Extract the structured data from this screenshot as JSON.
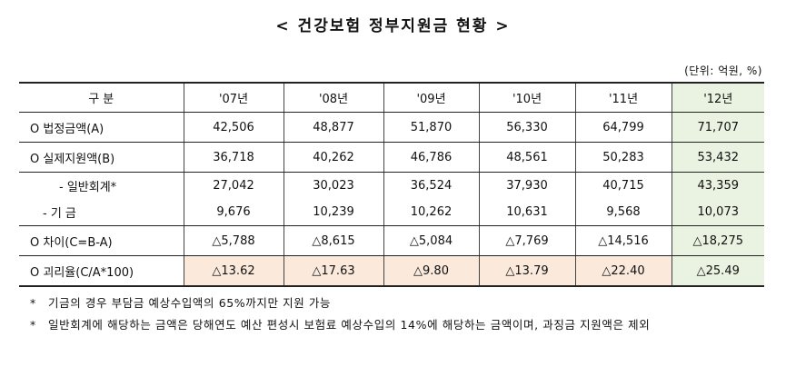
{
  "title": "< 건강보험 정부지원금 현황 >",
  "unit": "(단위: 억원, %)",
  "table": {
    "header": [
      "구 분",
      "'07년",
      "'08년",
      "'09년",
      "'10년",
      "'11년",
      "'12년"
    ],
    "rows": [
      {
        "label": "O 법정금액(A)",
        "values": [
          "42,506",
          "48,877",
          "51,870",
          "56,330",
          "64,799",
          "71,707"
        ]
      },
      {
        "label": "O 실제지원액(B)",
        "values": [
          "36,718",
          "40,262",
          "46,786",
          "48,561",
          "50,283",
          "53,432"
        ]
      },
      {
        "label": "- 일반회계*",
        "values": [
          "27,042",
          "30,023",
          "36,524",
          "37,930",
          "40,715",
          "43,359"
        ]
      },
      {
        "label": "- 기 금",
        "values": [
          "9,676",
          "10,239",
          "10,262",
          "10,631",
          "9,568",
          "10,073"
        ]
      },
      {
        "label": "O 차이(C=B-A)",
        "values": [
          "△5,788",
          "△8,615",
          "△5,084",
          "△7,769",
          "△14,516",
          "△18,275"
        ]
      },
      {
        "label": "O 괴리율(C/A*100)",
        "values": [
          "△13.62",
          "△17.63",
          "△9.80",
          "△13.79",
          "△22.40",
          "△25.49"
        ]
      }
    ]
  },
  "notes": [
    {
      "mark": "*",
      "text": "기금의 경우 부담금 예상수입액의 65%까지만 지원 가능"
    },
    {
      "mark": "*",
      "text": "일반회계에 해당하는 금액은 당해연도 예산 편성시 보험료 예상수입의 14%에 해당하는 금액이며, 과징금 지원액은 제외"
    }
  ],
  "colors": {
    "highlight_column": "#eaf3e2",
    "highlight_row": "#fbe9dc"
  }
}
